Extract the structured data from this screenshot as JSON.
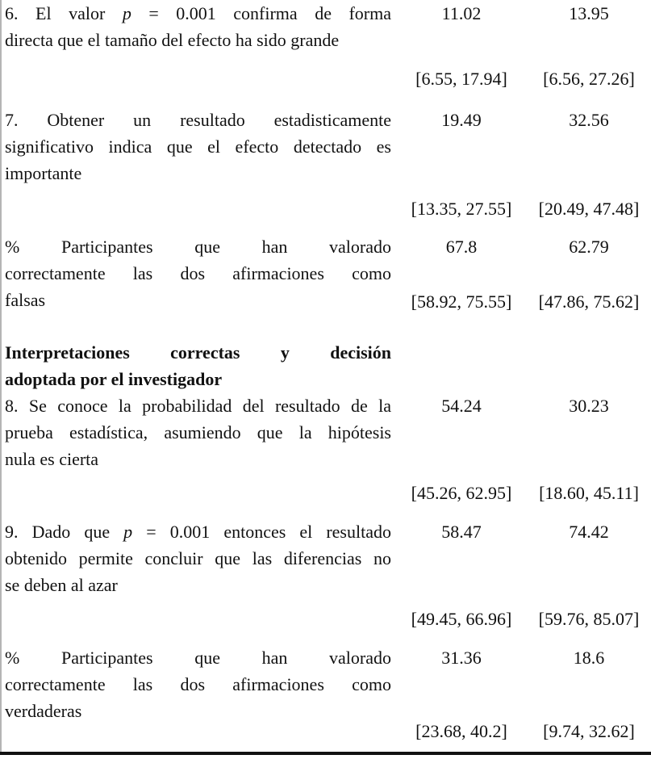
{
  "table": {
    "rows": [
      {
        "type": "item",
        "lines": [
          {
            "pre": "6. El valor ",
            "em": "p",
            "post": " = 0.001 confirma de forma"
          },
          {
            "pre": "directa que el tamaño del efecto ha sido grande"
          }
        ],
        "col1": "11.02",
        "col2": "13.95",
        "ci1": "[6.55, 17.94]",
        "ci2": "[6.56, 27.26]"
      },
      {
        "type": "item",
        "lines": [
          {
            "pre": "7. Obtener un resultado estadisticamente"
          },
          {
            "pre": "significativo indica que el efecto detectado es"
          },
          {
            "pre": "importante"
          }
        ],
        "col1": "19.49",
        "col2": "32.56",
        "ci1": "[13.35, 27.55]",
        "ci2": "[20.49, 47.48]"
      },
      {
        "type": "item",
        "lines": [
          {
            "pre": "% Participantes que han valorado"
          },
          {
            "pre": "correctamente las dos afirmaciones como"
          },
          {
            "pre": "falsas"
          }
        ],
        "col1": "67.8",
        "col2": "62.79",
        "ci1": "[58.92, 75.55]",
        "ci2": "[47.86, 75.62]"
      },
      {
        "type": "heading",
        "lines": [
          {
            "pre": "Interpretaciones correctas y decisión"
          },
          {
            "pre": "adoptada por el investigador"
          }
        ]
      },
      {
        "type": "item",
        "lines": [
          {
            "pre": "8. Se conoce la probabilidad del resultado de la"
          },
          {
            "pre": "prueba estadística, asumiendo que la hipótesis"
          },
          {
            "pre": "nula es cierta"
          }
        ],
        "col1": "54.24",
        "col2": "30.23",
        "ci1": "[45.26, 62.95]",
        "ci2": "[18.60, 45.11]"
      },
      {
        "type": "item",
        "lines": [
          {
            "pre": "9. Dado que ",
            "em": "p",
            "post": " = 0.001 entonces el resultado"
          },
          {
            "pre": "obtenido permite concluir que las diferencias no"
          },
          {
            "pre": "se deben al azar"
          }
        ],
        "col1": "58.47",
        "col2": "74.42",
        "ci1": "[49.45, 66.96]",
        "ci2": "[59.76, 85.07]"
      },
      {
        "type": "item",
        "lines": [
          {
            "pre": "% Participantes que han valorado"
          },
          {
            "pre": "correctamente las dos afirmaciones como"
          },
          {
            "pre": "verdaderas"
          }
        ],
        "col1": "31.36",
        "col2": "18.6",
        "ci1": "[23.68, 40.2]",
        "ci2": "[9.74, 32.62]"
      }
    ]
  }
}
